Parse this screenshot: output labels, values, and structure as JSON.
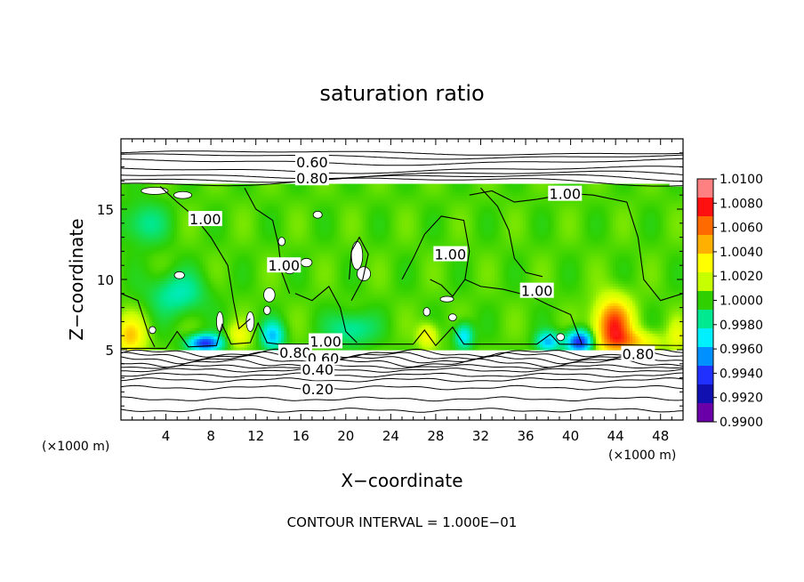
{
  "chart_data": {
    "type": "heatmap",
    "title": "saturation ratio",
    "xlabel": "X−coordinate",
    "ylabel": "Z−coordinate",
    "x_unit": "(×1000 m)",
    "x_unit_right": "(×1000 m)",
    "y_unit": "(×1000 m)",
    "xlim": [
      0,
      50
    ],
    "ylim": [
      0,
      20
    ],
    "x_ticks": [
      {
        "value": 4,
        "label": "4"
      },
      {
        "value": 8,
        "label": "8"
      },
      {
        "value": 12,
        "label": "12"
      },
      {
        "value": 16,
        "label": "16"
      },
      {
        "value": 20,
        "label": "20"
      },
      {
        "value": 24,
        "label": "24"
      },
      {
        "value": 28,
        "label": "28"
      },
      {
        "value": 32,
        "label": "32"
      },
      {
        "value": 36,
        "label": "36"
      },
      {
        "value": 40,
        "label": "40"
      },
      {
        "value": 44,
        "label": "44"
      },
      {
        "value": 48,
        "label": "48"
      }
    ],
    "y_ticks": [
      {
        "value": 5,
        "label": "5"
      },
      {
        "value": 10,
        "label": "10"
      },
      {
        "value": 15,
        "label": "15"
      }
    ],
    "footer": "CONTOUR INTERVAL = 1.000E−01",
    "colorbar": {
      "min": 0.99,
      "max": 1.01,
      "labels": [
        "1.0100",
        "1.0080",
        "1.0060",
        "1.0040",
        "1.0020",
        "1.0000",
        "0.9980",
        "0.9960",
        "0.9940",
        "0.9920",
        "0.9900"
      ],
      "colors": [
        "#ff8080",
        "#ff1010",
        "#ff6a00",
        "#ffb000",
        "#ffff00",
        "#c8ff00",
        "#30d000",
        "#00e890",
        "#00f0ff",
        "#0090ff",
        "#2030ff",
        "#1010b0",
        "#6a00a8"
      ]
    },
    "cloud_layer": {
      "z_bottom": 5.0,
      "z_top": 16.8,
      "background_value": 1.0
    },
    "contour_labels": [
      {
        "text": "0.60",
        "x": 17.0,
        "y": 18.35
      },
      {
        "text": "0.80",
        "x": 17.0,
        "y": 17.2
      },
      {
        "text": "1.00",
        "x": 39.5,
        "y": 16.1
      },
      {
        "text": "1.00",
        "x": 7.5,
        "y": 14.3
      },
      {
        "text": "1.00",
        "x": 29.3,
        "y": 11.8
      },
      {
        "text": "1.00",
        "x": 14.5,
        "y": 11.0
      },
      {
        "text": "1.00",
        "x": 37.0,
        "y": 9.2
      },
      {
        "text": "1.00",
        "x": 18.2,
        "y": 5.6
      },
      {
        "text": "0.80",
        "x": 15.5,
        "y": 4.8
      },
      {
        "text": "0.60",
        "x": 18.0,
        "y": 4.4
      },
      {
        "text": "0.40",
        "x": 17.5,
        "y": 3.6
      },
      {
        "text": "0.20",
        "x": 17.5,
        "y": 2.2
      },
      {
        "text": "0.80",
        "x": 46.0,
        "y": 4.7
      }
    ]
  }
}
